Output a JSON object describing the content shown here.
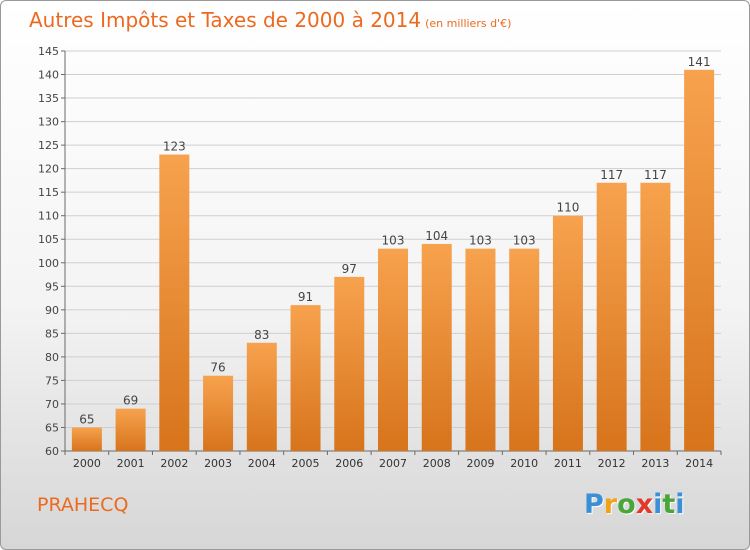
{
  "title": "Autres Impôts et Taxes de 2000 à 2014",
  "title_unit": "(en milliers d'€)",
  "commune": "PRAHECQ",
  "logo": {
    "text": "Proxiti",
    "letter_colors": [
      "#3a8fd6",
      "#f0a21a",
      "#4aa63a",
      "#e23a2a",
      "#3a8fd6",
      "#4aa63a"
    ]
  },
  "colors": {
    "bar_light": "#f7a24e",
    "bar_dark": "#d7741c",
    "accent": "#ec6a1f",
    "grid": "#cfcfcf",
    "axis": "#6a6a6a"
  },
  "chart_data": {
    "type": "bar",
    "title": "Autres Impôts et Taxes de 2000 à 2014",
    "categories": [
      "2000",
      "2001",
      "2002",
      "2003",
      "2004",
      "2005",
      "2006",
      "2007",
      "2008",
      "2009",
      "2010",
      "2011",
      "2012",
      "2013",
      "2014"
    ],
    "values": [
      65,
      69,
      123,
      76,
      83,
      91,
      97,
      103,
      104,
      103,
      103,
      110,
      117,
      117,
      141
    ],
    "ylim": [
      60,
      145
    ],
    "yticks": [
      60,
      65,
      70,
      75,
      80,
      85,
      90,
      95,
      100,
      105,
      110,
      115,
      120,
      125,
      130,
      135,
      140,
      145
    ],
    "grid": true,
    "data_labels": true,
    "xlabel": "",
    "ylabel": ""
  }
}
